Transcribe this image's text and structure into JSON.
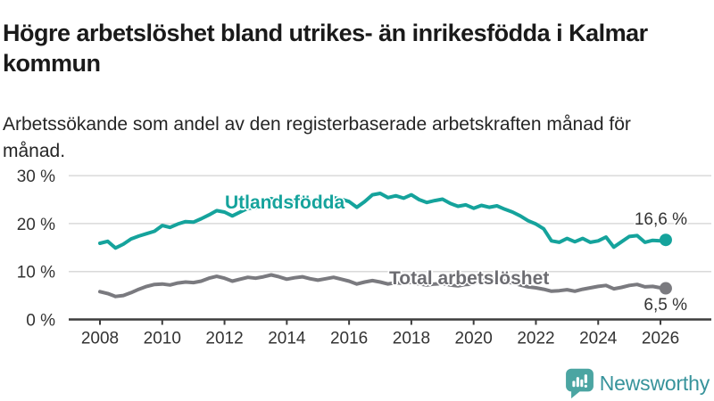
{
  "header": {
    "title": "Högre arbetslöshet bland utrikes- än inrikesfödda i Kalmar kommun",
    "subtitle": "Arbetssökande som andel av den registerbaserade arbetskraften månad för månad."
  },
  "chart_data": {
    "type": "line",
    "title": "Högre arbetslöshet bland utrikes- än inrikesfödda i Kalmar kommun",
    "subtitle": "Arbetssökande som andel av den registerbaserade arbetskraften månad för månad.",
    "unit": "%",
    "grid": true,
    "legend_position": "inline-labels",
    "ylim": [
      0,
      30
    ],
    "yticks": [
      {
        "value": 0,
        "label": "0 %"
      },
      {
        "value": 10,
        "label": "10 %"
      },
      {
        "value": 20,
        "label": "20 %"
      },
      {
        "value": 30,
        "label": "30 %"
      }
    ],
    "xticks": [
      {
        "value": 2008,
        "label": "2008"
      },
      {
        "value": 2010,
        "label": "2010"
      },
      {
        "value": 2012,
        "label": "2012"
      },
      {
        "value": 2014,
        "label": "2014"
      },
      {
        "value": 2016,
        "label": "2016"
      },
      {
        "value": 2018,
        "label": "2018"
      },
      {
        "value": 2020,
        "label": "2020"
      },
      {
        "value": 2022,
        "label": "2022"
      },
      {
        "value": 2024,
        "label": "2024"
      },
      {
        "value": 2026,
        "label": "2026"
      }
    ],
    "x": [
      2008,
      2008.25,
      2008.5,
      2008.75,
      2009,
      2009.25,
      2009.5,
      2009.75,
      2010,
      2010.25,
      2010.5,
      2010.75,
      2011,
      2011.25,
      2011.5,
      2011.75,
      2012,
      2012.25,
      2012.5,
      2012.75,
      2013,
      2013.25,
      2013.5,
      2013.75,
      2014,
      2014.25,
      2014.5,
      2014.75,
      2015,
      2015.25,
      2015.5,
      2015.75,
      2016,
      2016.25,
      2016.5,
      2016.75,
      2017,
      2017.25,
      2017.5,
      2017.75,
      2018,
      2018.25,
      2018.5,
      2018.75,
      2019,
      2019.25,
      2019.5,
      2019.75,
      2020,
      2020.25,
      2020.5,
      2020.75,
      2021,
      2021.25,
      2021.5,
      2021.75,
      2022,
      2022.25,
      2022.5,
      2022.75,
      2023,
      2023.25,
      2023.5,
      2023.75,
      2024,
      2024.25,
      2024.5,
      2024.75,
      2025,
      2025.25,
      2025.5,
      2025.75,
      2026,
      2026.17
    ],
    "series": [
      {
        "name": "Utlandsfödda",
        "color": "#15a39c",
        "end_value": 16.6,
        "end_label": "16,6 %",
        "values": [
          15.9,
          16.3,
          14.9,
          15.7,
          16.8,
          17.4,
          17.9,
          18.4,
          19.6,
          19.2,
          19.9,
          20.4,
          20.3,
          21.0,
          21.8,
          22.7,
          22.4,
          21.6,
          22.4,
          23.2,
          23.3,
          24.3,
          25.2,
          24.6,
          24.2,
          24.8,
          25.3,
          24.7,
          24.4,
          25.0,
          25.4,
          25.1,
          24.6,
          23.4,
          24.6,
          26.0,
          26.3,
          25.4,
          25.8,
          25.3,
          26.0,
          25.0,
          24.4,
          24.8,
          25.1,
          24.2,
          23.6,
          23.9,
          23.2,
          23.8,
          23.4,
          23.7,
          23.0,
          22.4,
          21.6,
          20.6,
          19.9,
          18.9,
          16.4,
          16.1,
          16.9,
          16.2,
          16.9,
          16.1,
          16.4,
          17.2,
          15.1,
          16.2,
          17.3,
          17.5,
          16.1,
          16.5,
          16.4,
          16.6
        ]
      },
      {
        "name": "Total arbetslöshet",
        "color": "#7a7a7f",
        "end_value": 6.5,
        "end_label": "6,5 %",
        "values": [
          5.8,
          5.4,
          4.8,
          5.0,
          5.6,
          6.3,
          6.9,
          7.3,
          7.4,
          7.2,
          7.6,
          7.8,
          7.7,
          8.0,
          8.6,
          9.0,
          8.6,
          8.0,
          8.4,
          8.8,
          8.6,
          8.9,
          9.3,
          8.9,
          8.4,
          8.7,
          8.9,
          8.5,
          8.2,
          8.5,
          8.8,
          8.4,
          8.0,
          7.4,
          7.8,
          8.1,
          7.8,
          7.4,
          7.7,
          7.5,
          7.8,
          7.4,
          7.2,
          7.4,
          7.5,
          7.2,
          7.0,
          7.3,
          7.4,
          8.6,
          8.8,
          8.4,
          8.0,
          7.6,
          7.2,
          6.8,
          6.6,
          6.3,
          5.9,
          6.0,
          6.2,
          5.9,
          6.3,
          6.6,
          6.9,
          7.1,
          6.4,
          6.7,
          7.1,
          7.3,
          6.8,
          6.9,
          6.6,
          6.5
        ]
      }
    ]
  },
  "footer": {
    "brand": "Newsworthy",
    "logo_icon": "bar-chart-bubble-icon",
    "logo_color": "#4ba5a2",
    "brand_color": "#37939b"
  },
  "colors": {
    "accent_teal": "#15a39c",
    "line_gray": "#7a7a7f",
    "gridline": "#d9d9d9",
    "axis": "#3d3d3d",
    "text_dark": "#1a1a1a"
  }
}
